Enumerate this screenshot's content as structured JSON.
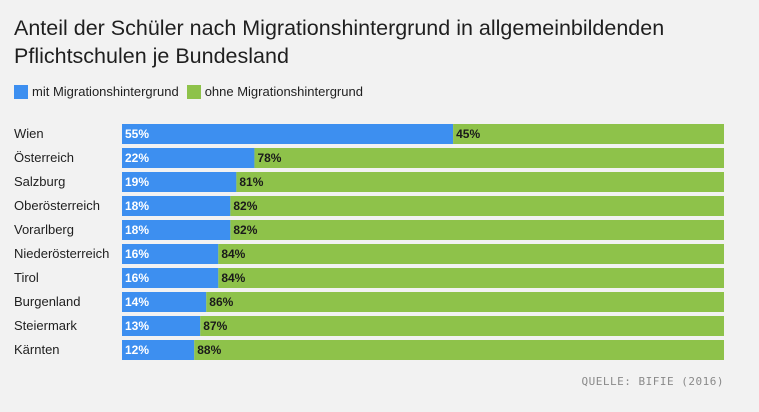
{
  "header": {
    "title": "Anteil der Schüler nach Migrationshintergrund in allgemeinbildenden Pflichtschulen je Bundesland"
  },
  "legend": {
    "items": [
      {
        "label": "mit Migrationshintergrund",
        "color": "#3d8ff0"
      },
      {
        "label": "ohne Migrationshintergrund",
        "color": "#8ec24a"
      }
    ]
  },
  "source": "QUELLE: BIFIE (2016)",
  "chart_data": {
    "type": "bar",
    "orientation": "horizontal",
    "stacked": true,
    "title": "Anteil der Schüler nach Migrationshintergrund in allgemeinbildenden Pflichtschulen je Bundesland",
    "categories": [
      "Wien",
      "Österreich",
      "Salzburg",
      "Oberösterreich",
      "Vorarlberg",
      "Niederösterreich",
      "Tirol",
      "Burgenland",
      "Steiermark",
      "Kärnten"
    ],
    "series": [
      {
        "name": "mit Migrationshintergrund",
        "color": "#3d8ff0",
        "values": [
          55,
          22,
          19,
          18,
          18,
          16,
          16,
          14,
          13,
          12
        ],
        "labels": [
          "55%",
          "22%",
          "19%",
          "18%",
          "18%",
          "16%",
          "16%",
          "14%",
          "13%",
          "12%"
        ]
      },
      {
        "name": "ohne Migrationshintergrund",
        "color": "#8ec24a",
        "values": [
          45,
          78,
          81,
          82,
          82,
          84,
          84,
          86,
          87,
          88
        ],
        "labels": [
          "45%",
          "78%",
          "81%",
          "82%",
          "82%",
          "84%",
          "84%",
          "86%",
          "87%",
          "88%"
        ]
      }
    ],
    "xlim": [
      0,
      100
    ],
    "grid": false,
    "legend_position": "top-left"
  }
}
